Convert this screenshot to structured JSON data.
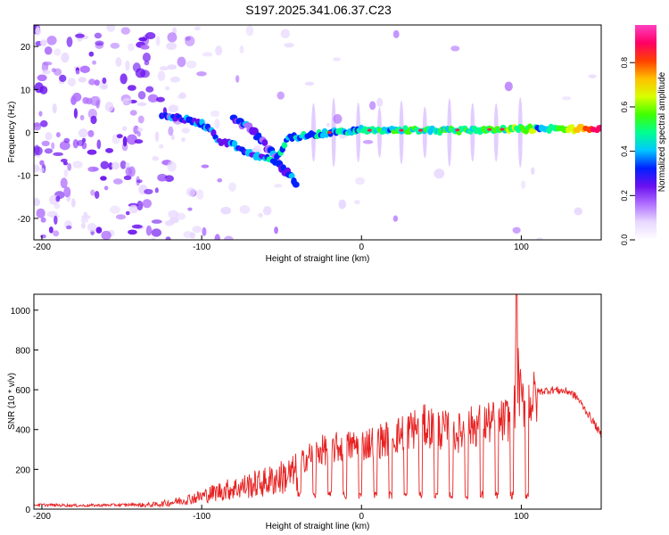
{
  "title": "S197.2025.341.06.37.C23",
  "chart_data": [
    {
      "type": "heatmap",
      "xlabel": "Height of straight line (km)",
      "ylabel": "Frequency (Hz)",
      "xlim": [
        -205,
        150
      ],
      "ylim": [
        -25,
        25
      ],
      "xticks": [
        -200,
        -100,
        0,
        100
      ],
      "yticks": [
        20,
        10,
        0,
        -10,
        -20
      ],
      "colorbar": {
        "label": "Normalized spectral amplitude",
        "range": [
          0.0,
          0.97
        ],
        "ticks": [
          "0.0",
          "0.2",
          "0.4",
          "0.6",
          "0.8"
        ],
        "tick_values": [
          0.0,
          0.2,
          0.4,
          0.6,
          0.8
        ],
        "colors": [
          "#ffffff",
          "#e8d8ff",
          "#b070ff",
          "#6a10f0",
          "#0020ff",
          "#00c8ff",
          "#00ff90",
          "#40ff00",
          "#d8ff00",
          "#ffc000",
          "#ff4000",
          "#ff0066",
          "#ff40c0"
        ]
      },
      "trace": {
        "description": "main spectral track center frequency vs height",
        "points": [
          [
            -125,
            4
          ],
          [
            -110,
            3
          ],
          [
            -100,
            2
          ],
          [
            -95,
            1
          ],
          [
            -90,
            -2
          ],
          [
            -80,
            -3
          ],
          [
            -70,
            -5
          ],
          [
            -60,
            -6
          ],
          [
            -55,
            -7
          ],
          [
            -45,
            -1
          ],
          [
            -35,
            -1
          ],
          [
            -20,
            0
          ],
          [
            0,
            0.5
          ],
          [
            50,
            0.5
          ],
          [
            100,
            0.8
          ],
          [
            150,
            0.8
          ]
        ]
      },
      "branch": {
        "description": "secondary descending branch",
        "points": [
          [
            -80,
            3
          ],
          [
            -70,
            1
          ],
          [
            -60,
            -3
          ],
          [
            -50,
            -8
          ],
          [
            -40,
            -12
          ]
        ]
      }
    },
    {
      "type": "line",
      "xlabel": "Height of straight line (km)",
      "ylabel": "SNR (10 * v/v)",
      "xlim": [
        -205,
        150
      ],
      "ylim": [
        0,
        1080
      ],
      "xticks": [
        -200,
        -100,
        0,
        100
      ],
      "yticks": [
        0,
        200,
        400,
        600,
        800,
        1000
      ],
      "color": "#e82020",
      "series_envelope": {
        "x": [
          -205,
          -190,
          -175,
          -160,
          -145,
          -130,
          -120,
          -110,
          -100,
          -90,
          -80,
          -70,
          -60,
          -50,
          -40,
          -30,
          -20,
          -10,
          0,
          10,
          20,
          30,
          40,
          50,
          60,
          70,
          80,
          85,
          90,
          95,
          98,
          100,
          105,
          110,
          120,
          130,
          135,
          140,
          145,
          150
        ],
        "values": [
          22,
          20,
          18,
          20,
          22,
          28,
          40,
          60,
          80,
          110,
          130,
          150,
          170,
          200,
          230,
          300,
          320,
          330,
          340,
          360,
          380,
          420,
          440,
          420,
          400,
          440,
          460,
          450,
          470,
          500,
          700,
          560,
          580,
          590,
          600,
          590,
          560,
          500,
          440,
          370
        ]
      },
      "spike": {
        "x": 97,
        "value": 1080
      }
    }
  ]
}
